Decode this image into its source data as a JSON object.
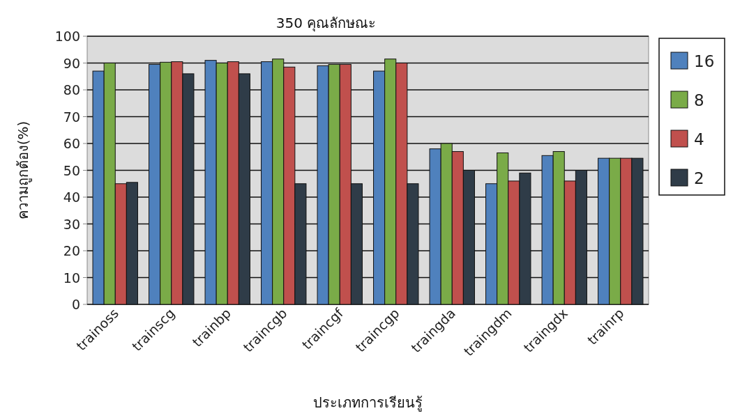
{
  "chart_data": {
    "type": "bar",
    "title": "350 คุณลักษณะ",
    "xlabel": "ประเภทการเรียนรู้",
    "ylabel": "ความถูกต้อง(%)",
    "categories": [
      "trainoss",
      "trainscg",
      "trainbp",
      "traincgb",
      "traincgf",
      "traincgp",
      "traingda",
      "traingdm",
      "traingdx",
      "trainrp"
    ],
    "series": [
      {
        "name": "16",
        "color": "#4f81bd",
        "values": [
          87,
          89.5,
          91,
          90.5,
          89,
          87,
          58,
          45,
          55.5,
          54.5
        ]
      },
      {
        "name": "8",
        "color": "#7aab48",
        "values": [
          90,
          90.3,
          90,
          91.5,
          89.5,
          91.5,
          60,
          56.5,
          57,
          54.5
        ]
      },
      {
        "name": "4",
        "color": "#c0504d",
        "values": [
          45,
          90.5,
          90.5,
          88.5,
          89.5,
          90,
          57,
          46,
          46,
          54.5
        ]
      },
      {
        "name": "2",
        "color": "#2f3c48",
        "values": [
          45.5,
          86,
          86,
          45,
          45,
          45,
          50,
          49,
          50,
          54.5
        ]
      }
    ],
    "ylim": [
      0,
      100
    ],
    "yticks": [
      0,
      10,
      20,
      30,
      40,
      50,
      60,
      70,
      80,
      90,
      100
    ],
    "grid": "y",
    "legend": "right"
  }
}
